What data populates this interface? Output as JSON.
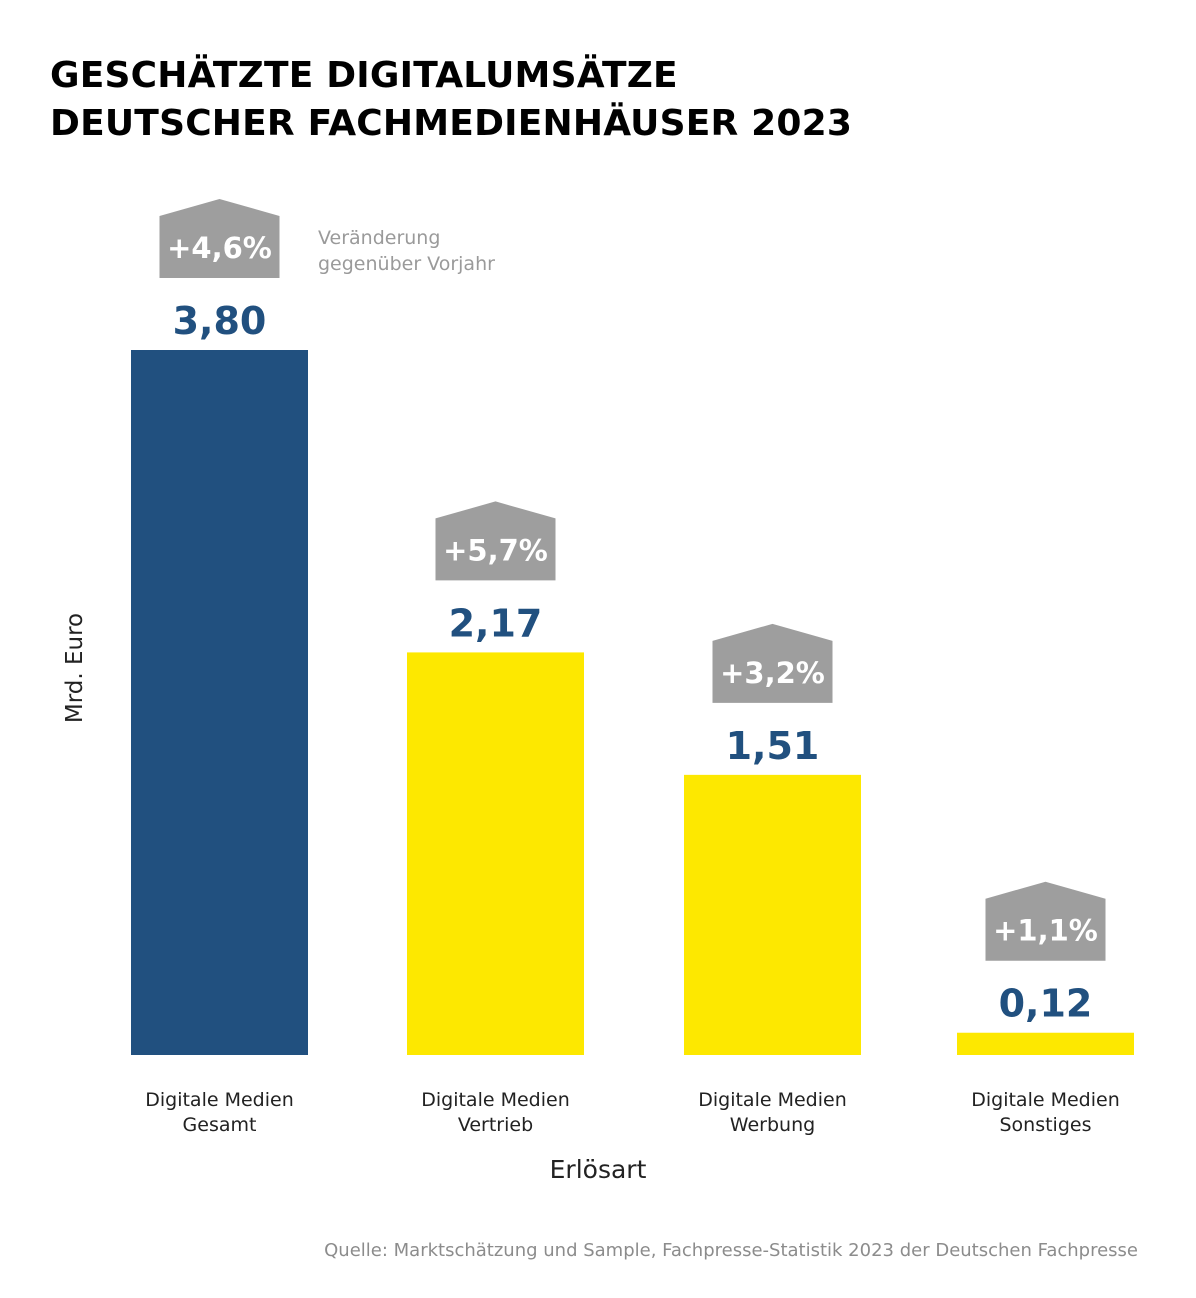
{
  "title": {
    "line1": "GESCHÄTZTE DIGITALUMSÄTZE",
    "line2": "DEUTSCHER FACHMEDIENHÄUSER 2023"
  },
  "legend": {
    "line1": "Veränderung",
    "line2": "gegenüber Vorjahr"
  },
  "source": "Quelle: Marktschätzung und Sample, Fachpresse-Statistik 2023 der Deutschen Fachpresse",
  "colors": {
    "blue": "#21507f",
    "yellow": "#fde800",
    "badge": "#9e9e9e",
    "value_text": "#21507f",
    "legend_text": "#9a9a9a"
  },
  "chart_data": {
    "type": "bar",
    "categories": [
      [
        "Digitale Medien",
        "Gesamt"
      ],
      [
        "Digitale Medien",
        "Vertrieb"
      ],
      [
        "Digitale Medien",
        "Werbung"
      ],
      [
        "Digitale Medien",
        "Sonstiges"
      ]
    ],
    "values": [
      3.8,
      2.17,
      1.51,
      0.12
    ],
    "value_labels": [
      "3,80",
      "2,17",
      "1,51",
      "0,12"
    ],
    "change_labels": [
      "+4,6%",
      "+5,7%",
      "+3,2%",
      "+1,1%"
    ],
    "bar_colors": [
      "blue",
      "yellow",
      "yellow",
      "yellow"
    ],
    "ylabel": "Mrd. Euro",
    "xlabel": "Erlösart",
    "ylim": [
      0,
      3.8
    ],
    "grid": false,
    "axis_lines": false
  }
}
